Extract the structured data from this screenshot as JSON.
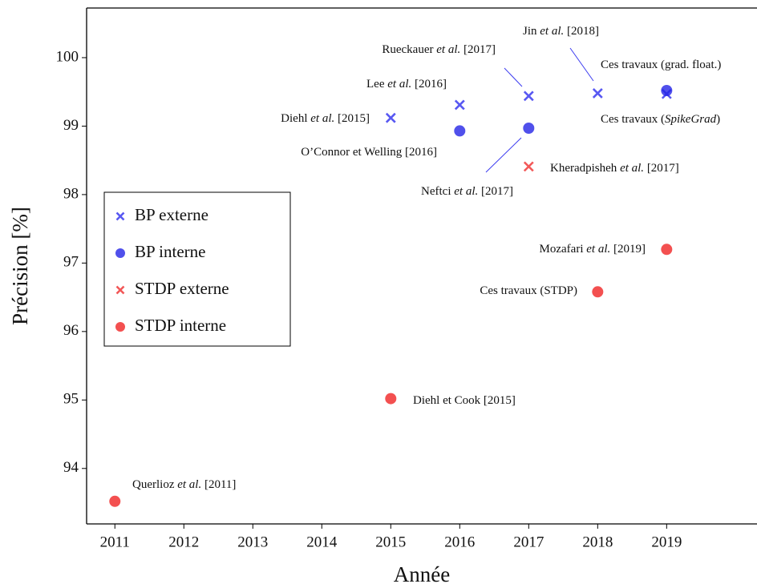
{
  "chart_data": {
    "type": "scatter",
    "xlabel": "Année",
    "ylabel": "Précision [%]",
    "xlim": [
      2010.59,
      2020.31
    ],
    "ylim": [
      93.19,
      100.725
    ],
    "xticks": [
      2011,
      2012,
      2013,
      2014,
      2015,
      2016,
      2017,
      2018,
      2019
    ],
    "yticks": [
      94,
      95,
      96,
      97,
      98,
      99,
      100
    ],
    "legend": "left",
    "series": [
      {
        "name": "BP externe",
        "color": "#3b3bf0",
        "marker": "x",
        "x": [
          2015,
          2016,
          2017,
          2018,
          2019
        ],
        "values": [
          99.12,
          99.31,
          99.44,
          99.48,
          99.47
        ]
      },
      {
        "name": "BP interne",
        "color": "#2424e6",
        "marker": "o",
        "x": [
          2016,
          2017,
          2019
        ],
        "values": [
          98.93,
          98.97,
          99.52
        ]
      },
      {
        "name": "STDP externe",
        "color": "#f03b3b",
        "marker": "x",
        "x": [
          2017
        ],
        "values": [
          98.41
        ]
      },
      {
        "name": "STDP interne",
        "color": "#f02424",
        "marker": "o",
        "x": [
          2011,
          2015,
          2018,
          2019
        ],
        "values": [
          93.52,
          95.02,
          96.58,
          97.2
        ]
      }
    ],
    "annotations": [
      {
        "pre": "Querlioz ",
        "em": "et al.",
        "post": " [2011]"
      },
      {
        "pre": "Diehl et Cook [2015]"
      },
      {
        "pre": "Ces travaux (STDP)"
      },
      {
        "pre": "Mozafari ",
        "em": "et al.",
        "post": " [2019]"
      },
      {
        "pre": "Kheradpisheh ",
        "em": "et al.",
        "post": " [2017]"
      },
      {
        "pre": "Neftci ",
        "em": "et al.",
        "post": " [2017]"
      },
      {
        "pre": "O’Connor et Welling [2016]"
      },
      {
        "pre": "Diehl ",
        "em": "et al.",
        "post": " [2015]"
      },
      {
        "pre": "Lee ",
        "em": "et al.",
        "post": " [2016]"
      },
      {
        "pre": "Rueckauer ",
        "em": "et al.",
        "post": " [2017]"
      },
      {
        "pre": "Jin ",
        "em": "et al.",
        "post": " [2018]"
      },
      {
        "pre": "Ces travaux (grad. float.)"
      },
      {
        "pre": "Ces travaux (",
        "em": "SpikeGrad",
        "post": ")"
      }
    ]
  }
}
